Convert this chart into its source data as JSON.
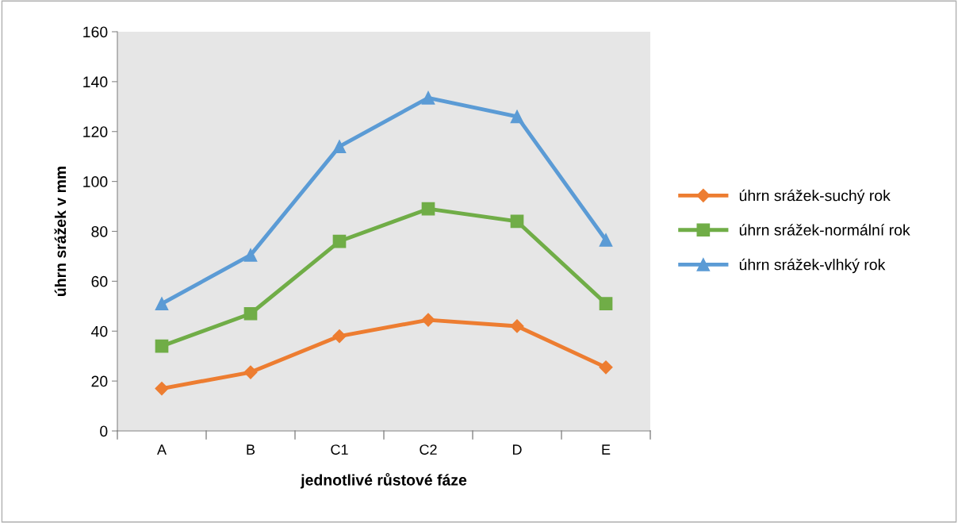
{
  "chart_data": {
    "type": "line",
    "xlabel": "jednotlivé růstové fáze",
    "ylabel": "úhrn srážek v mm",
    "categories": [
      "A",
      "B",
      "C1",
      "C2",
      "D",
      "E"
    ],
    "series": [
      {
        "name": "úhrn srážek-suchý rok",
        "color": "#ed7d31",
        "marker": "diamond",
        "values": [
          17,
          23.5,
          38,
          44.5,
          42,
          25.5
        ]
      },
      {
        "name": "úhrn srážek-normální rok",
        "color": "#70ad47",
        "marker": "square",
        "values": [
          34,
          47,
          76,
          89,
          84,
          51
        ]
      },
      {
        "name": "úhrn srážek-vlhký rok",
        "color": "#5b9bd5",
        "marker": "triangle",
        "values": [
          51,
          70.5,
          114,
          133.5,
          126,
          76.5
        ]
      }
    ],
    "ylim": [
      0,
      160
    ],
    "yticks": [
      0,
      20,
      40,
      60,
      80,
      100,
      120,
      140,
      160
    ],
    "grid": false,
    "legend": "right",
    "line_style": "solid"
  }
}
